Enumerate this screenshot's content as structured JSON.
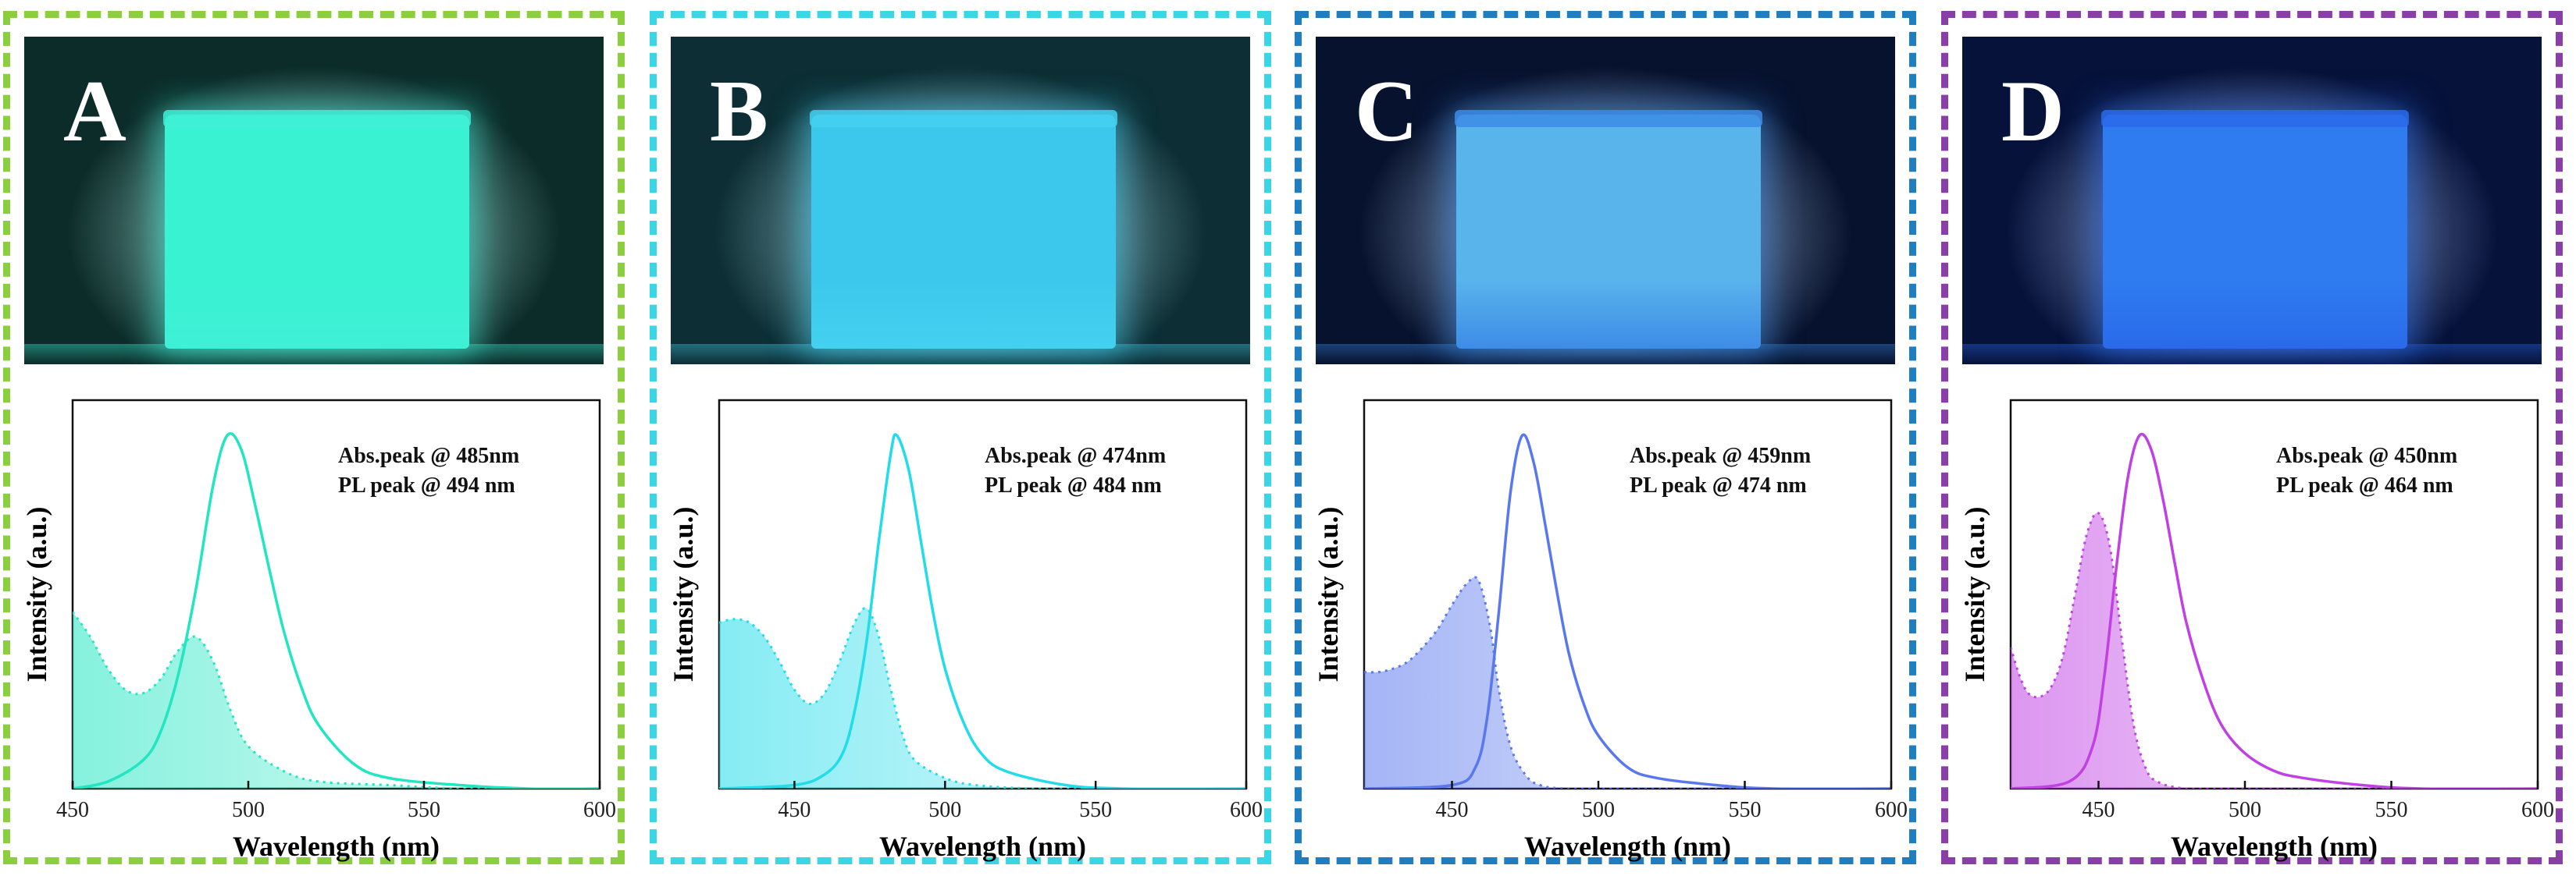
{
  "panels": [
    {
      "label": "A",
      "border_color": "#8ccf3e",
      "line_color": "#22e6c2",
      "photo": {
        "bg": "#0c2c2a",
        "vial": "#38f2d2",
        "glow": "#3ff0d6"
      },
      "annotations": [
        "Abs.peak @ 485nm",
        "PL peak @ 494 nm"
      ]
    },
    {
      "label": "B",
      "border_color": "#3ad6e6",
      "line_color": "#22dcea",
      "photo": {
        "bg": "#0c2e34",
        "vial": "#3cc8ec",
        "glow": "#44d0f0"
      },
      "annotations": [
        "Abs.peak @ 474nm",
        "PL peak @ 484 nm"
      ]
    },
    {
      "label": "C",
      "border_color": "#1f7ec0",
      "line_color": "#5a78ee",
      "photo": {
        "bg": "#07122e",
        "vial": "#5ab4ec",
        "glow": "#3c8ce6"
      },
      "annotations": [
        "Abs.peak @ 459nm",
        "PL peak @ 474 nm"
      ]
    },
    {
      "label": "D",
      "border_color": "#8a3fa8",
      "line_color": "#c040e4",
      "photo": {
        "bg": "#06123a",
        "vial": "#2e7cf0",
        "glow": "#2a6aea"
      },
      "annotations": [
        "Abs.peak @ 450nm",
        "PL peak @ 464 nm"
      ]
    }
  ],
  "chart_data": [
    {
      "type": "line",
      "xlabel": "Wavelength (nm)",
      "ylabel": "Intensity (a.u.)",
      "xlim": [
        450,
        600
      ],
      "xticks": [
        450,
        500,
        550,
        600
      ],
      "ylim": [
        0,
        1.1
      ],
      "series": [
        {
          "style": "dotted-filled",
          "x": [
            450,
            455,
            460,
            465,
            470,
            475,
            480,
            485,
            490,
            495,
            500,
            510,
            520,
            540,
            560,
            580,
            600
          ],
          "y": [
            0.5,
            0.43,
            0.34,
            0.28,
            0.27,
            0.31,
            0.39,
            0.43,
            0.36,
            0.22,
            0.12,
            0.05,
            0.02,
            0.01,
            0.0,
            0.0,
            0.0
          ]
        },
        {
          "style": "solid",
          "x": [
            450,
            460,
            470,
            475,
            480,
            485,
            490,
            494,
            498,
            502,
            506,
            510,
            515,
            520,
            530,
            540,
            560,
            580,
            600
          ],
          "y": [
            0.0,
            0.02,
            0.08,
            0.16,
            0.32,
            0.56,
            0.86,
            1.0,
            0.96,
            0.8,
            0.62,
            0.45,
            0.29,
            0.18,
            0.07,
            0.03,
            0.01,
            0.0,
            0.0
          ]
        }
      ]
    },
    {
      "type": "line",
      "xlabel": "Wavelength (nm)",
      "ylabel": "Intensity (a.u.)",
      "xlim": [
        425,
        600
      ],
      "xticks": [
        450,
        500,
        550,
        600
      ],
      "ylim": [
        0,
        1.1
      ],
      "series": [
        {
          "style": "dotted-filled",
          "x": [
            425,
            430,
            435,
            440,
            445,
            450,
            455,
            460,
            465,
            470,
            474,
            478,
            482,
            486,
            490,
            500,
            510,
            530,
            560,
            600
          ],
          "y": [
            0.47,
            0.48,
            0.47,
            0.43,
            0.36,
            0.28,
            0.24,
            0.27,
            0.36,
            0.47,
            0.51,
            0.43,
            0.28,
            0.15,
            0.08,
            0.03,
            0.01,
            0.0,
            0.0,
            0.0
          ]
        },
        {
          "style": "solid",
          "x": [
            425,
            450,
            460,
            466,
            470,
            474,
            478,
            482,
            484,
            488,
            492,
            496,
            500,
            506,
            512,
            520,
            540,
            560,
            600
          ],
          "y": [
            0.0,
            0.01,
            0.04,
            0.1,
            0.22,
            0.42,
            0.7,
            0.95,
            1.0,
            0.9,
            0.7,
            0.5,
            0.34,
            0.19,
            0.1,
            0.05,
            0.01,
            0.0,
            0.0
          ]
        }
      ]
    },
    {
      "type": "line",
      "xlabel": "Wavelength (nm)",
      "ylabel": "Intensity (a.u.)",
      "xlim": [
        420,
        600
      ],
      "xticks": [
        450,
        500,
        550,
        600
      ],
      "ylim": [
        0,
        1.1
      ],
      "series": [
        {
          "style": "dotted-filled",
          "x": [
            420,
            425,
            430,
            435,
            440,
            445,
            450,
            455,
            459,
            463,
            466,
            470,
            475,
            480,
            490,
            520,
            560,
            600
          ],
          "y": [
            0.33,
            0.33,
            0.34,
            0.36,
            0.4,
            0.45,
            0.52,
            0.58,
            0.59,
            0.46,
            0.28,
            0.12,
            0.04,
            0.01,
            0.0,
            0.0,
            0.0,
            0.0
          ]
        },
        {
          "style": "solid",
          "x": [
            420,
            450,
            458,
            462,
            466,
            470,
            474,
            478,
            482,
            486,
            490,
            495,
            500,
            510,
            520,
            540,
            560,
            600
          ],
          "y": [
            0.0,
            0.01,
            0.06,
            0.2,
            0.5,
            0.84,
            1.0,
            0.92,
            0.74,
            0.55,
            0.38,
            0.24,
            0.15,
            0.06,
            0.03,
            0.01,
            0.0,
            0.0
          ]
        }
      ]
    },
    {
      "type": "line",
      "xlabel": "Wavelength (nm)",
      "ylabel": "Intensity (a.u.)",
      "xlim": [
        420,
        600
      ],
      "xticks": [
        450,
        500,
        550,
        600
      ],
      "ylim": [
        0,
        1.1
      ],
      "series": [
        {
          "style": "dotted-filled",
          "x": [
            420,
            423,
            426,
            430,
            434,
            438,
            442,
            446,
            450,
            454,
            458,
            462,
            466,
            470,
            480,
            500,
            540,
            600
          ],
          "y": [
            0.4,
            0.32,
            0.27,
            0.26,
            0.29,
            0.38,
            0.55,
            0.72,
            0.78,
            0.68,
            0.42,
            0.18,
            0.06,
            0.02,
            0.0,
            0.0,
            0.0,
            0.0
          ]
        },
        {
          "style": "solid",
          "x": [
            420,
            440,
            448,
            452,
            456,
            460,
            464,
            468,
            472,
            476,
            480,
            486,
            492,
            500,
            510,
            520,
            540,
            560,
            600
          ],
          "y": [
            0.0,
            0.02,
            0.12,
            0.32,
            0.62,
            0.88,
            1.0,
            0.96,
            0.82,
            0.64,
            0.47,
            0.3,
            0.18,
            0.1,
            0.05,
            0.03,
            0.01,
            0.0,
            0.0
          ]
        }
      ]
    }
  ]
}
